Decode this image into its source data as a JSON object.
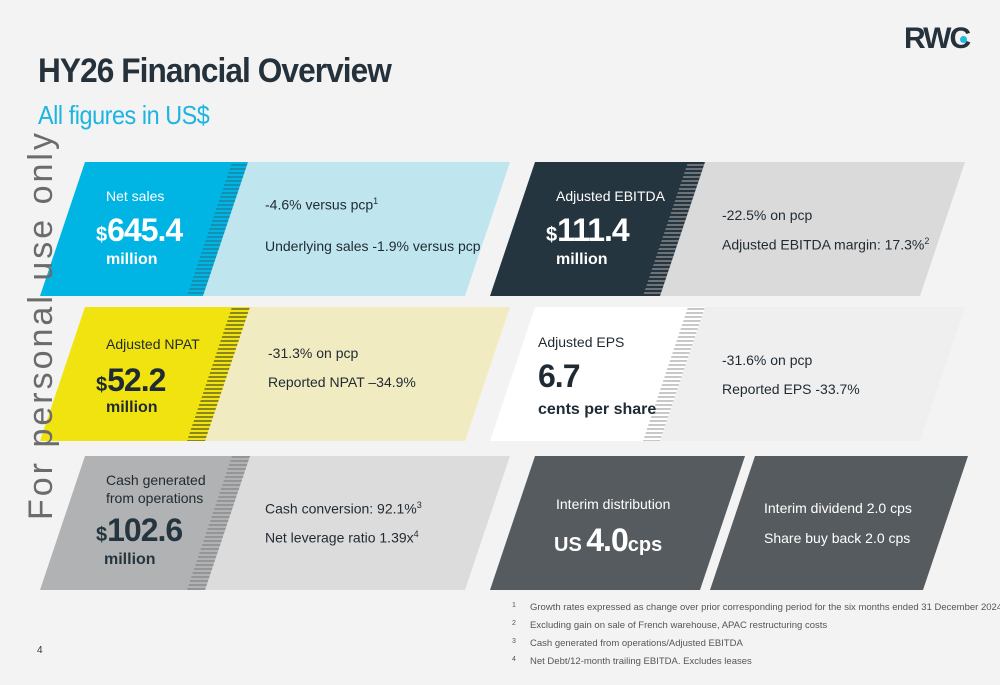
{
  "header": {
    "title": "HY26 Financial Overview",
    "subtitle": "All figures in US$",
    "logo_text": "RWC",
    "side_text": "For personal use only"
  },
  "colors": {
    "accent_blue": "#00b4e4",
    "light_blue": "#bfe5ef",
    "dark_navy": "#25353f",
    "light_grey": "#dadada",
    "yellow": "#f1e30f",
    "light_yellow": "#f0ebc0",
    "mid_grey": "#b0b2b3",
    "dark_grey": "#555b5e"
  },
  "panels": {
    "net_sales": {
      "label": "Net sales",
      "currency": "$",
      "value": "645.4",
      "unit": "million",
      "line1": "-4.6% versus pcp",
      "line1_sup": "1",
      "line2": "Underlying sales -1.9% versus pcp"
    },
    "ebitda": {
      "label": "Adjusted EBITDA",
      "currency": "$",
      "value": "111.4",
      "unit": "million",
      "line1": "-22.5% on pcp",
      "line2": "Adjusted EBITDA margin: 17.3%",
      "line2_sup": "2"
    },
    "npat": {
      "label": "Adjusted NPAT",
      "currency": "$",
      "value": "52.2",
      "unit": "million",
      "line1": "-31.3% on pcp",
      "line2": "Reported NPAT –34.9%"
    },
    "eps": {
      "label": "Adjusted EPS",
      "value": "6.7",
      "unit": "cents per share",
      "line1": "-31.6% on pcp",
      "line2": "Reported EPS -33.7%"
    },
    "cash": {
      "label_line1": "Cash generated",
      "label_line2": "from operations",
      "currency": "$",
      "value": "102.6",
      "unit": "million",
      "line1": "Cash conversion: 92.1%",
      "line1_sup": "3",
      "line2": "Net leverage ratio 1.39x",
      "line2_sup": "4"
    },
    "distribution": {
      "label": "Interim distribution",
      "prefix": "US",
      "value": "4.0",
      "suffix": "cps",
      "line1": "Interim dividend 2.0 cps",
      "line2": "Share buy back 2.0 cps"
    }
  },
  "footnotes": [
    {
      "num": "1",
      "text": "Growth rates expressed as change over prior corresponding period for the six months ended 31 December 2024"
    },
    {
      "num": "2",
      "text": "Excluding gain on sale of French warehouse, APAC restructuring costs"
    },
    {
      "num": "3",
      "text": "Cash generated from operations/Adjusted EBITDA"
    },
    {
      "num": "4",
      "text": "Net Debt/12-month trailing EBITDA. Excludes leases"
    }
  ],
  "page_number": "4"
}
